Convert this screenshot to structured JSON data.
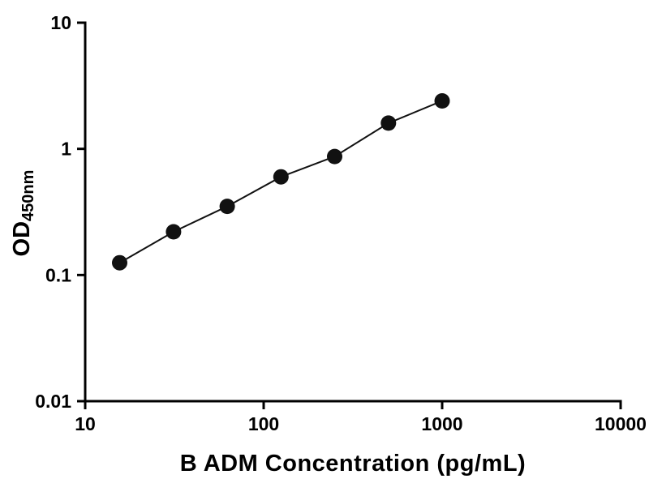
{
  "chart_data": {
    "type": "scatter",
    "title": "",
    "xlabel": "B ADM Concentration (pg/mL)",
    "ylabel_main": "OD",
    "ylabel_sub": "450nm",
    "x_scale": "log",
    "y_scale": "log",
    "xlim": [
      10,
      10000
    ],
    "ylim": [
      0.01,
      10
    ],
    "grid": "off",
    "legend": "none",
    "x_ticks": [
      {
        "value": 10,
        "label": "10"
      },
      {
        "value": 100,
        "label": "100"
      },
      {
        "value": 1000,
        "label": "1000"
      },
      {
        "value": 10000,
        "label": "10000"
      }
    ],
    "y_ticks": [
      {
        "value": 10,
        "label": "10"
      },
      {
        "value": 1,
        "label": "1"
      },
      {
        "value": 0.1,
        "label": "0.1"
      },
      {
        "value": 0.01,
        "label": "0.01"
      }
    ],
    "series": [
      {
        "x": [
          15.6,
          31.25,
          62.5,
          125,
          250,
          500,
          1000
        ],
        "y": [
          0.125,
          0.22,
          0.35,
          0.6,
          0.87,
          1.6,
          2.4
        ]
      }
    ],
    "axis_color": "#000000",
    "line_color": "#111111",
    "marker_color": "#111111",
    "marker_radius": 9.5
  }
}
